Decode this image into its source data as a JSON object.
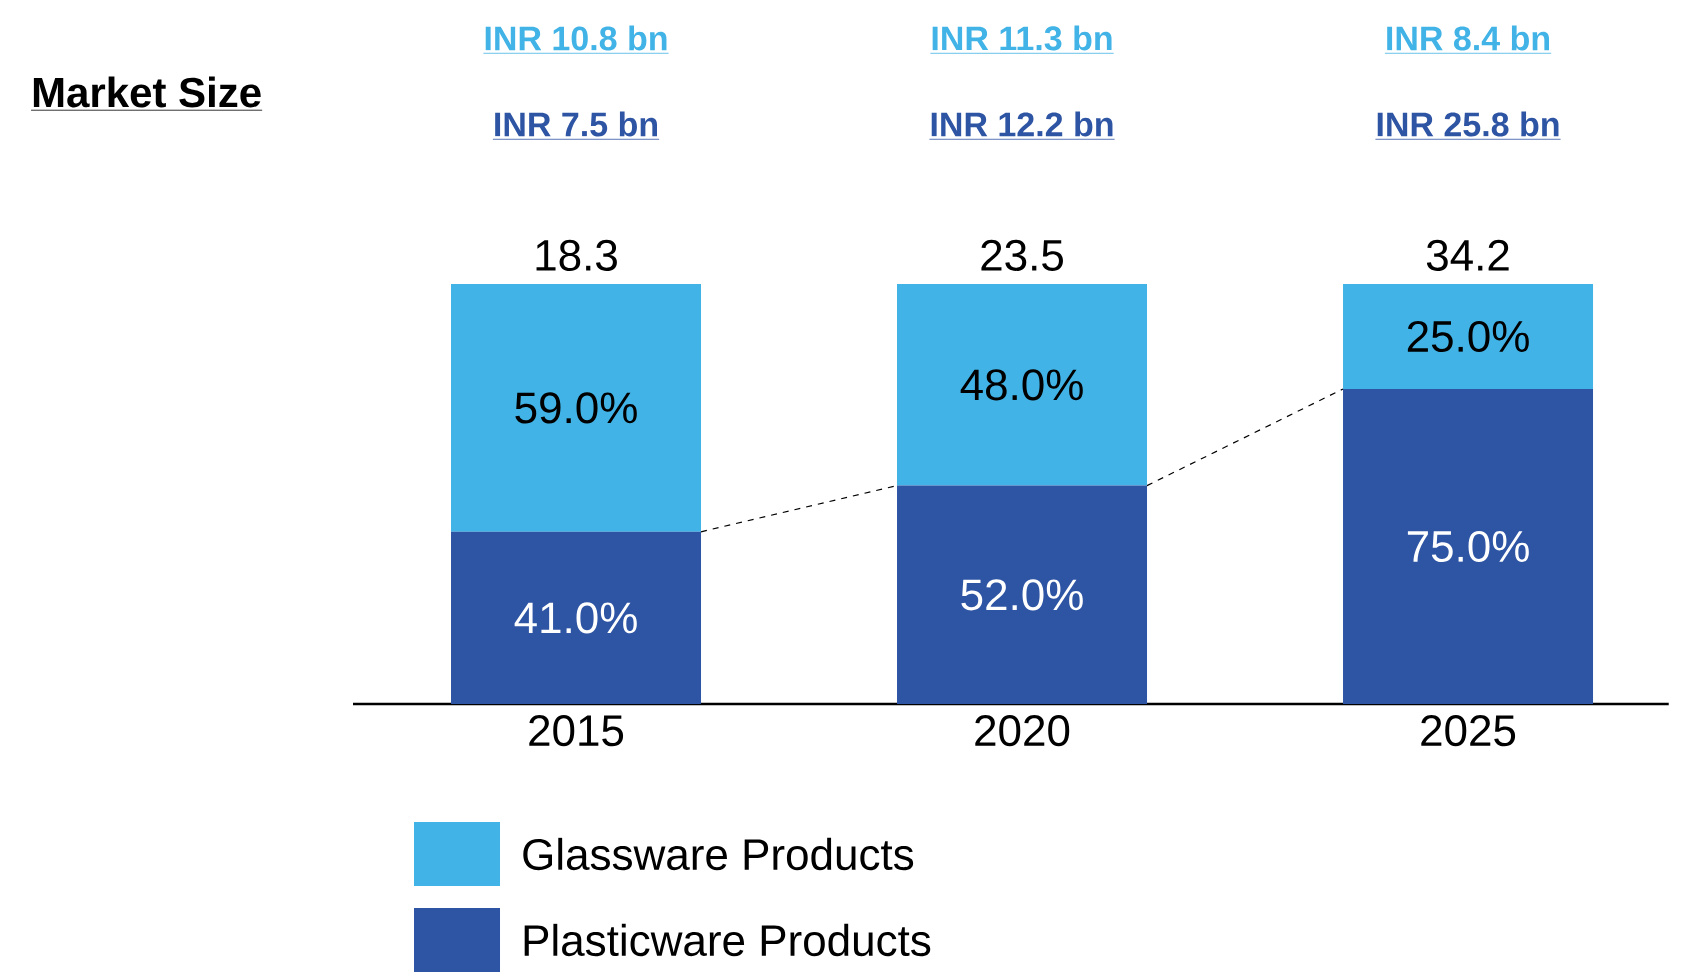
{
  "chart_data": {
    "type": "bar",
    "stacked": true,
    "title": "Market Size",
    "categories": [
      "2015",
      "2020",
      "2025"
    ],
    "series": [
      {
        "name": "Plasticware Products",
        "color": "#2e54a4",
        "values": [
          41.0,
          52.0,
          75.0
        ],
        "value_labels": [
          "41.0%",
          "52.0%",
          "75.0%"
        ]
      },
      {
        "name": "Glassware Products",
        "color": "#41b3e6",
        "values": [
          59.0,
          48.0,
          25.0
        ],
        "value_labels": [
          "59.0%",
          "48.0%",
          "25.0%"
        ]
      }
    ],
    "annotations": [
      "INR 10.8 bn",
      "INR 7.5 bn",
      "18.3",
      "INR 11.3 bn",
      "INR 12.2 bn",
      "23.5",
      "INR 8.4 bn",
      "INR 25.8 bn",
      "34.2"
    ],
    "legend": "bottom",
    "grid": false
  }
}
